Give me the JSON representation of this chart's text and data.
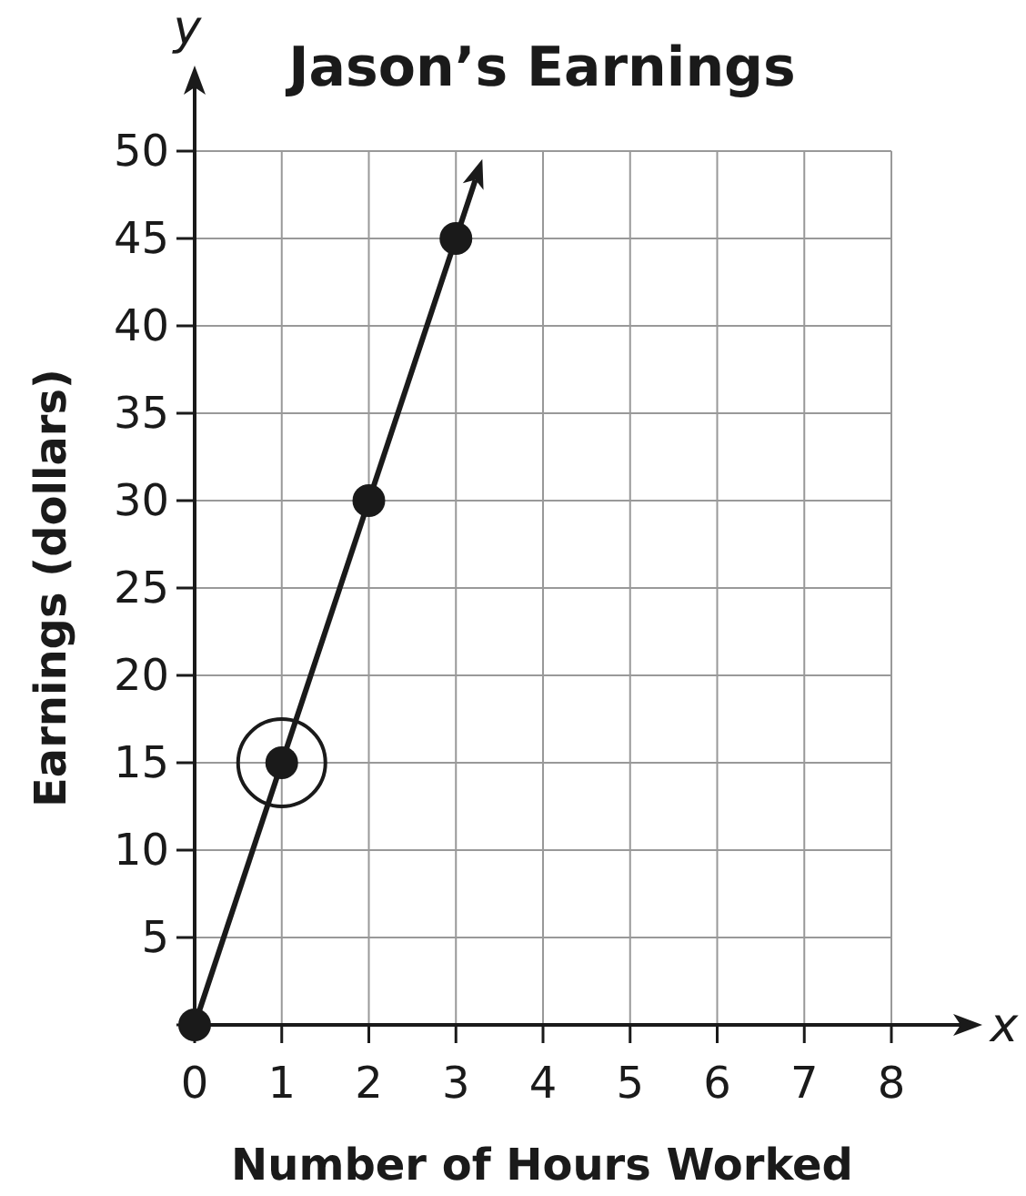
{
  "chart_data": {
    "type": "line",
    "title": "Jason’s Earnings",
    "xlabel": "Number of Hours Worked",
    "ylabel": "Earnings (dollars)",
    "annotations": [
      "x",
      "y"
    ],
    "series": [
      {
        "color": "#1a1a1a",
        "x": [
          0,
          3
        ],
        "values": [
          0,
          45
        ]
      },
      {
        "type": "scatter",
        "color": "#1a1a1a",
        "x": [
          0,
          1,
          2,
          3
        ],
        "values": [
          0,
          15,
          30,
          45
        ],
        "marker": "circle"
      }
    ],
    "xlim": [
      0,
      8
    ],
    "ylim": [
      0,
      50
    ],
    "xticks": [
      0,
      1,
      2,
      3,
      4,
      5,
      6,
      7,
      8
    ],
    "yticks": [
      {
        "value": 0,
        "label": null
      },
      5,
      10,
      15,
      20,
      25,
      30,
      35,
      40,
      45,
      50
    ],
    "grid": true
  }
}
